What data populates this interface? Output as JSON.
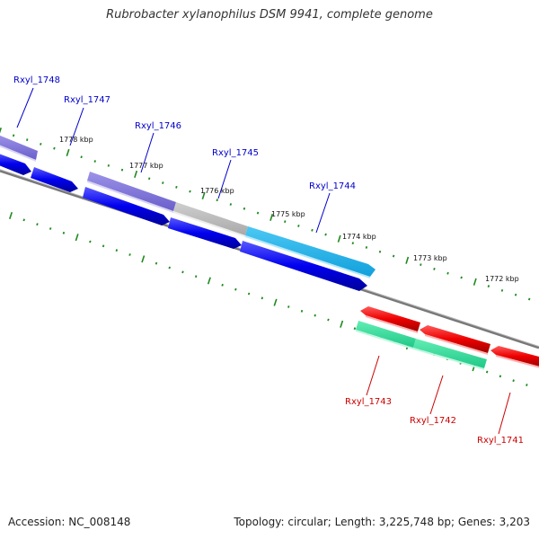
{
  "title": "Rubrobacter xylanophilus DSM 9941, complete genome",
  "footer": {
    "accession": "Accession: NC_008148",
    "topology": "Topology: circular; Length: 3,225,748 bp; Genes: 3,203"
  },
  "colors": {
    "backbone": "#808080",
    "tick": "#1f8a1f",
    "label_forward": "#0000cc",
    "label_reverse": "#cc0000",
    "gene_blue": "#0000ee",
    "gene_violet": "#7b6fd6",
    "gene_gray": "#bdbdbd",
    "gene_cyan": "#1fb4ec",
    "gene_red": "#ee0000",
    "gene_green": "#2fdd9a"
  },
  "scale_labels": [
    {
      "text": "1778 kbp"
    },
    {
      "text": "1777 kbp"
    },
    {
      "text": "1776 kbp"
    },
    {
      "text": "1775 kbp"
    },
    {
      "text": "1774 kbp"
    },
    {
      "text": "1773 kbp"
    },
    {
      "text": "1772 kbp"
    }
  ],
  "gene_labels": [
    {
      "text": "Rxyl_1748",
      "strand": "forward"
    },
    {
      "text": "Rxyl_1747",
      "strand": "forward"
    },
    {
      "text": "Rxyl_1746",
      "strand": "forward"
    },
    {
      "text": "Rxyl_1745",
      "strand": "forward"
    },
    {
      "text": "Rxyl_1744",
      "strand": "forward"
    },
    {
      "text": "Rxyl_1743",
      "strand": "reverse"
    },
    {
      "text": "Rxyl_1742",
      "strand": "reverse"
    },
    {
      "text": "Rxyl_1741",
      "strand": "reverse"
    }
  ]
}
